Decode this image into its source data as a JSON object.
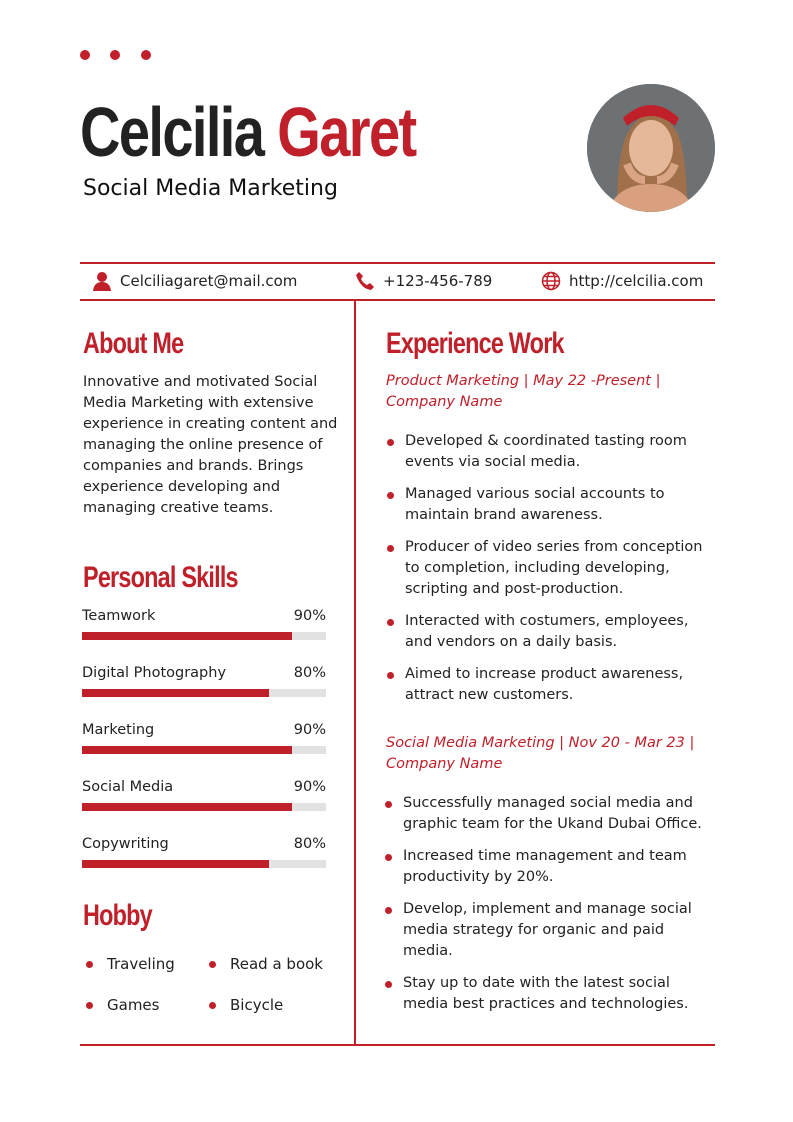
{
  "header": {
    "first_name": "Celcilia",
    "last_name": "Garet",
    "role": "Social Media Marketing"
  },
  "contact": {
    "email": "Celciliagaret@mail.com",
    "phone": "+123-456-789",
    "website": "http://celcilia.com"
  },
  "about": {
    "title": "About Me",
    "text": "Innovative and motivated Social Media Marketing with extensive experience in creating content and managing the online presence of companies and brands. Brings experience developing and managing creative teams."
  },
  "skills": {
    "title": "Personal Skills",
    "items": [
      {
        "label": "Teamwork",
        "value": "90%",
        "percent": 90
      },
      {
        "label": "Digital Photography",
        "value": "80%",
        "percent": 80
      },
      {
        "label": "Marketing",
        "value": "90%",
        "percent": 90
      },
      {
        "label": "Social Media",
        "value": "90%",
        "percent": 90
      },
      {
        "label": "Copywriting",
        "value": "80%",
        "percent": 80
      }
    ]
  },
  "hobby": {
    "title": "Hobby",
    "items": [
      "Traveling",
      "Read a book",
      "Games",
      "Bicycle"
    ]
  },
  "experience": {
    "title": "Experience Work",
    "jobs": [
      {
        "heading": "Product Marketing | May 22 -Present | Company Name",
        "bullets": [
          "Developed & coordinated tasting room events via social media.",
          "Managed various social accounts to maintain brand awareness.",
          "Producer of video series from conception to completion, including developing, scripting and post-production.",
          "Interacted with costumers, employees, and vendors on a daily basis.",
          "Aimed to increase product awareness, attract new customers."
        ]
      },
      {
        "heading": "Social Media Marketing | Nov 20 - Mar 23 | Company Name",
        "bullets": [
          "Successfully managed social media and graphic team for the Ukand Dubai Office.",
          "Increased time management and team productivity by 20%.",
          "Develop, implement and manage social media strategy for organic and paid media.",
          "Stay up to date with the latest social media best practices and technologies."
        ]
      }
    ]
  },
  "colors": {
    "accent": "#c0202a",
    "bar_track": "#e2e2e2"
  }
}
